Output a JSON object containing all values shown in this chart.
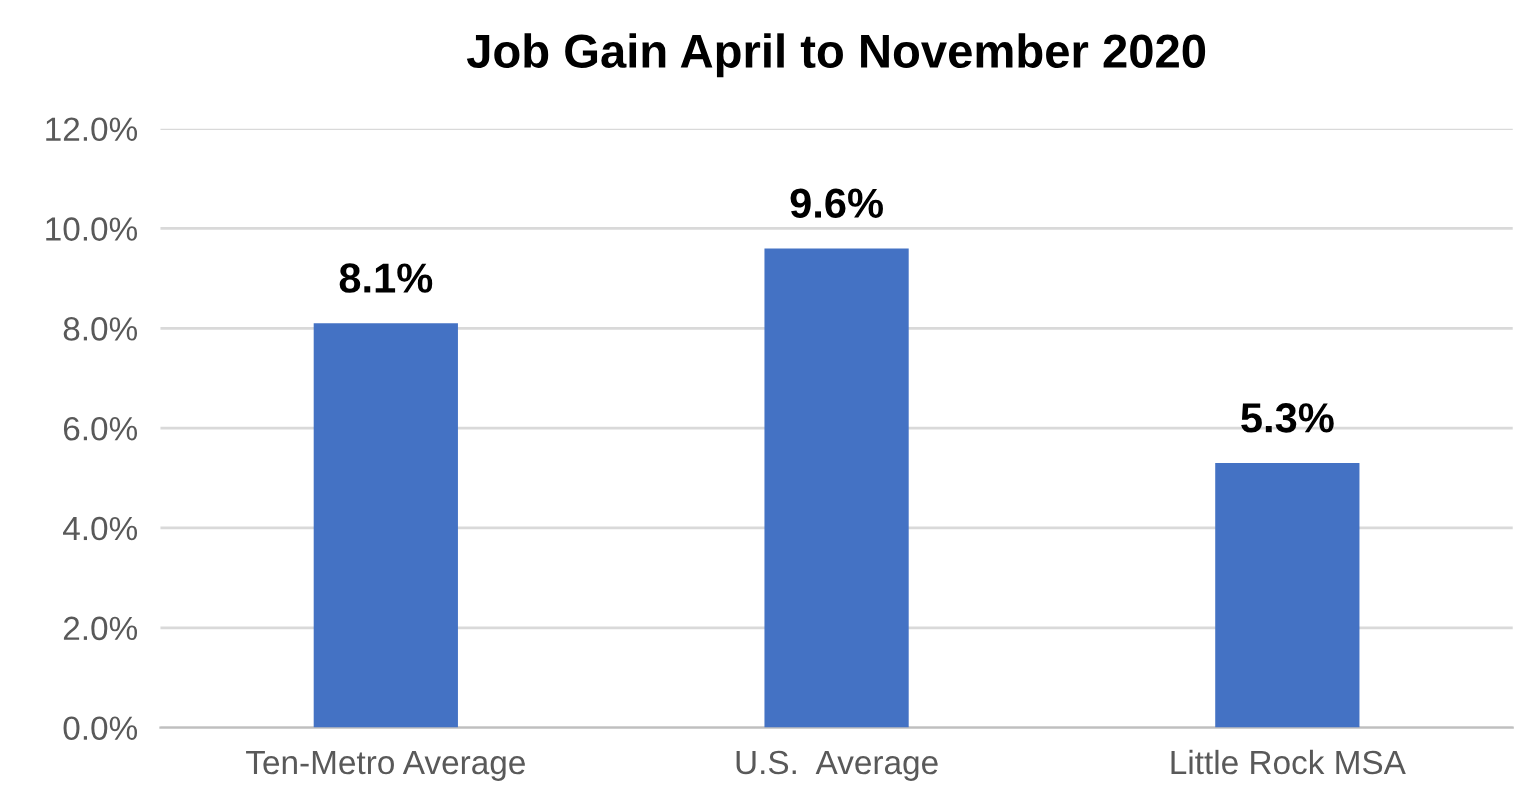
{
  "chart_data": {
    "type": "bar",
    "title": "Job Gain April to November 2020",
    "categories": [
      "Ten-Metro Average",
      "U.S.  Average",
      "Little Rock MSA"
    ],
    "values": [
      8.1,
      9.6,
      5.3
    ],
    "color": "#4472c4",
    "value_labels": [
      "8.1%",
      "9.6%",
      "5.3%"
    ],
    "ylim": [
      0,
      12
    ],
    "yticks": [
      {
        "value": 0,
        "label": "0.0%"
      },
      {
        "value": 2,
        "label": "2.0%"
      },
      {
        "value": 4,
        "label": "4.0%"
      },
      {
        "value": 6,
        "label": "6.0%"
      },
      {
        "value": 8,
        "label": "8.0%"
      },
      {
        "value": 10,
        "label": "10.0%"
      },
      {
        "value": 12,
        "label": "12.0%"
      }
    ],
    "grid": "y"
  }
}
